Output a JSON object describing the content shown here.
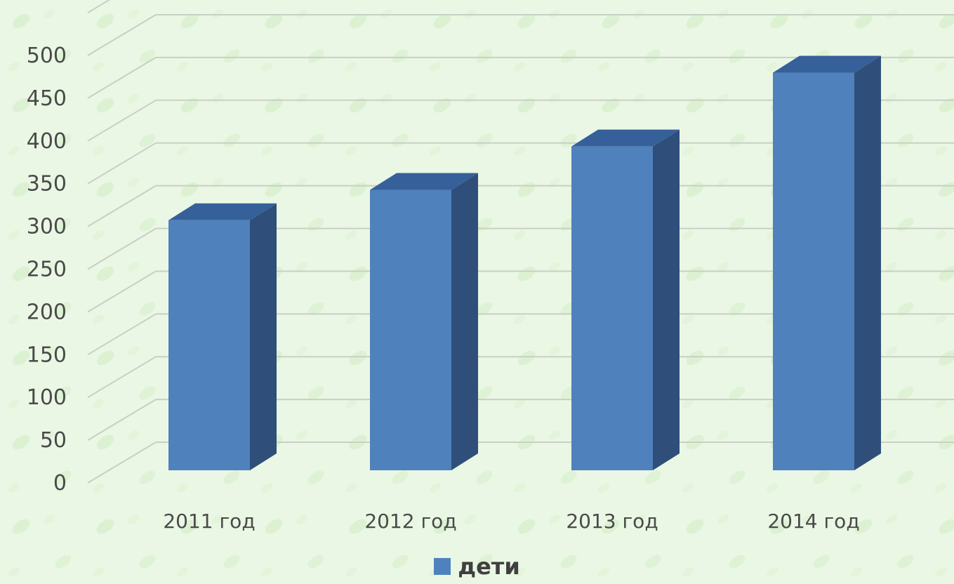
{
  "chart_data": {
    "type": "bar",
    "categories": [
      "2011 год",
      "2012 год",
      "2013 год",
      "2014 год"
    ],
    "series": [
      {
        "name": "дети",
        "values": [
          305,
          342,
          395,
          485
        ]
      }
    ],
    "ylim": [
      0,
      500
    ],
    "yticks": [
      "0",
      "50",
      "100",
      "150",
      "200",
      "250",
      "300",
      "350",
      "400",
      "450",
      "500"
    ],
    "grid": true,
    "legend_position": "bottom",
    "three_d": true,
    "colors": {
      "bar_front": "#4f81bd",
      "bar_side": "#2f4f7a",
      "bar_top": "#36609a",
      "grid": "#c9cfc6",
      "background": "#eaf7e4"
    }
  },
  "legend": {
    "label": "дети"
  }
}
